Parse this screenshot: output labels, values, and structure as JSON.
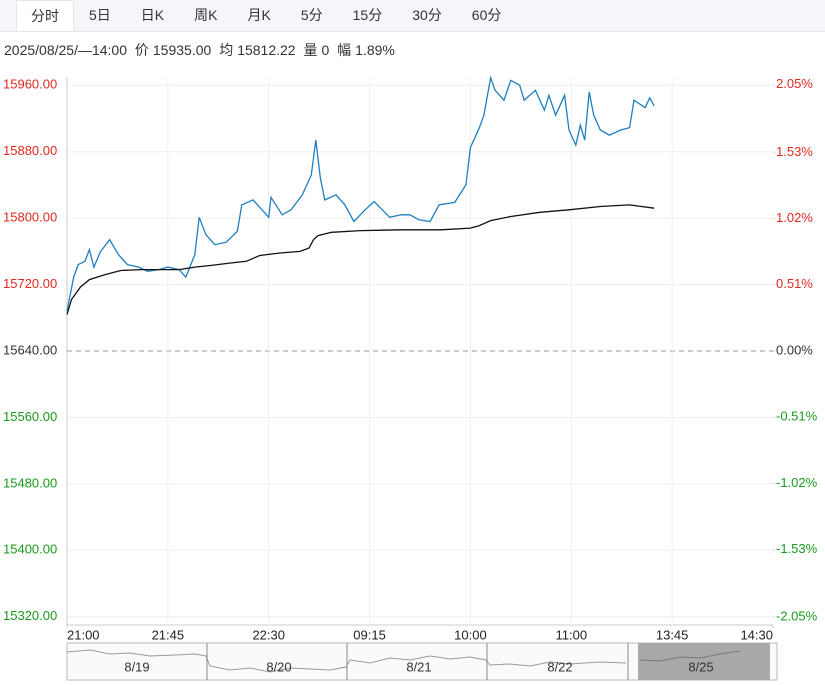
{
  "tabs": [
    "分时",
    "5日",
    "日K",
    "周K",
    "月K",
    "5分",
    "15分",
    "30分",
    "60分"
  ],
  "info": {
    "datetime": "2025/08/25/—14:00",
    "price_label": "价",
    "price": "15935.00",
    "avg_label": "均",
    "avg": "15812.22",
    "volume_label": "量",
    "volume": "0",
    "range_label": "幅",
    "range": "1.89%"
  },
  "chart_data": {
    "type": "line",
    "xlim": [
      0,
      315
    ],
    "xticks": [
      {
        "value": 0,
        "label": "21:00"
      },
      {
        "value": 45,
        "label": "21:45"
      },
      {
        "value": 90,
        "label": "22:30"
      },
      {
        "value": 135,
        "label": "09:15"
      },
      {
        "value": 180,
        "label": "10:00"
      },
      {
        "value": 225,
        "label": "11:00"
      },
      {
        "value": 270,
        "label": "13:45"
      },
      {
        "value": 315,
        "label": "14:30"
      }
    ],
    "ylim": [
      15310,
      15970
    ],
    "yticks": [
      {
        "value": 15960,
        "label": "15960.00"
      },
      {
        "value": 15880,
        "label": "15880.00"
      },
      {
        "value": 15800,
        "label": "15800.00"
      },
      {
        "value": 15720,
        "label": "15720.00"
      },
      {
        "value": 15640,
        "label": "15640.00"
      },
      {
        "value": 15560,
        "label": "15560.00"
      },
      {
        "value": 15480,
        "label": "15480.00"
      },
      {
        "value": 15400,
        "label": "15400.00"
      },
      {
        "value": 15320,
        "label": "15320.00"
      }
    ],
    "y2lim": [
      -2.11,
      2.11
    ],
    "y2ticks": [
      {
        "value": 2.05,
        "label": "2.05%"
      },
      {
        "value": 1.53,
        "label": "1.53%"
      },
      {
        "value": 1.02,
        "label": "1.02%"
      },
      {
        "value": 0.51,
        "label": "0.51%"
      },
      {
        "value": 0,
        "label": "0.00%"
      },
      {
        "value": -0.51,
        "label": "-0.51%"
      },
      {
        "value": -1.02,
        "label": "-1.02%"
      },
      {
        "value": -1.53,
        "label": "-1.53%"
      },
      {
        "value": -2.05,
        "label": "-2.05%"
      }
    ],
    "baseline": 15640,
    "up_color": "#e02a1f",
    "down_color": "#1a9a1a",
    "grid": true,
    "series": [
      {
        "color": "#1f7fbf",
        "x": [
          0,
          3,
          5,
          8,
          10,
          12,
          15,
          19,
          23,
          27,
          32,
          36,
          41,
          45,
          50,
          53,
          57,
          59,
          62,
          66,
          71,
          76,
          78,
          83,
          87,
          90,
          91,
          96,
          100,
          105,
          109,
          111,
          113,
          115,
          120,
          124,
          128,
          133,
          137,
          144,
          149,
          153,
          157,
          162,
          166,
          173,
          178,
          180,
          184,
          186,
          189,
          191,
          195,
          198,
          202,
          204,
          209,
          213,
          215,
          218,
          222,
          224,
          227,
          229,
          231,
          233,
          235,
          238,
          242,
          247,
          251,
          253,
          258,
          260,
          262
        ],
        "values": [
          15688,
          15729,
          15744,
          15748,
          15762,
          15741,
          15760,
          15774,
          15756,
          15744,
          15741,
          15736,
          15738,
          15741,
          15738,
          15729,
          15756,
          15801,
          15780,
          15768,
          15771,
          15784,
          15816,
          15822,
          15810,
          15801,
          15825,
          15804,
          15810,
          15828,
          15852,
          15894,
          15849,
          15822,
          15828,
          15816,
          15796,
          15810,
          15820,
          15801,
          15804,
          15804,
          15798,
          15796,
          15816,
          15819,
          15840,
          15885,
          15909,
          15924,
          15969,
          15954,
          15942,
          15966,
          15960,
          15942,
          15954,
          15930,
          15948,
          15924,
          15948,
          15906,
          15888,
          15912,
          15894,
          15952,
          15924,
          15906,
          15900,
          15906,
          15909,
          15942,
          15933,
          15945,
          15935
        ]
      },
      {
        "color": "#111111",
        "x": [
          0,
          2,
          6,
          10,
          17,
          24,
          33,
          42,
          50,
          57,
          64,
          73,
          80,
          86,
          95,
          104,
          108,
          110,
          112,
          118,
          131,
          149,
          167,
          180,
          184,
          189,
          198,
          211,
          224,
          238,
          251,
          262
        ],
        "values": [
          15684,
          15702,
          15717,
          15726,
          15732,
          15737,
          15738,
          15738,
          15738,
          15741,
          15743,
          15746,
          15748,
          15755,
          15758,
          15760,
          15764,
          15774,
          15779,
          15783,
          15785,
          15786,
          15786,
          15788,
          15791,
          15797,
          15802,
          15807,
          15810,
          15814,
          15816,
          15812
        ]
      }
    ]
  },
  "navigator": {
    "labels": [
      "8/19",
      "8/20",
      "8/21",
      "8/22",
      "8/25"
    ]
  }
}
